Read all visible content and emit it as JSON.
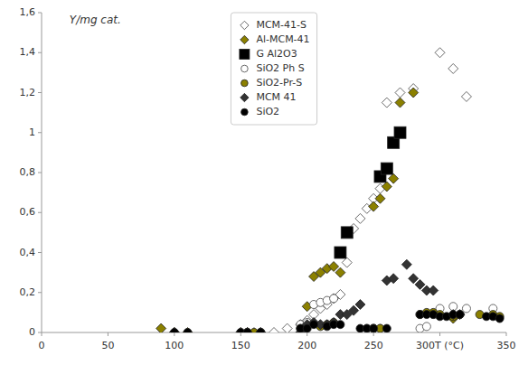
{
  "chart_data": {
    "type": "scatter",
    "y_label": "Y/mg cat.",
    "xlim": [
      0,
      350
    ],
    "ylim": [
      0,
      1.6
    ],
    "xticks": [
      0,
      50,
      100,
      150,
      200,
      250,
      {
        "value": 300,
        "label": "300T (°C)"
      },
      350
    ],
    "yticks": [
      0,
      {
        "value": 0.2,
        "label": "0,2"
      },
      {
        "value": 0.4,
        "label": "0,4"
      },
      {
        "value": 0.6,
        "label": "0,6"
      },
      {
        "value": 0.8,
        "label": "0,8"
      },
      1,
      {
        "value": 1.2,
        "label": "1,2"
      },
      {
        "value": 1.4,
        "label": "1,4"
      },
      {
        "value": 1.6,
        "label": "1,6"
      }
    ],
    "grid": false,
    "legend": "upper center",
    "series": [
      {
        "name": "MCM-41-S",
        "color": "white",
        "marker": "diamond",
        "x": [
          150,
          160,
          165,
          175,
          185,
          195,
          200,
          205,
          210,
          215,
          220,
          225,
          230,
          235,
          240,
          245,
          250,
          255,
          260,
          270,
          280,
          300,
          310,
          320
        ],
        "values": [
          0.0,
          0.0,
          0.0,
          0.0,
          0.02,
          0.04,
          0.06,
          0.09,
          0.12,
          0.14,
          0.17,
          0.19,
          0.35,
          0.52,
          0.57,
          0.62,
          0.67,
          0.72,
          1.15,
          1.2,
          1.22,
          1.4,
          1.32,
          1.18
        ]
      },
      {
        "name": "Al-MCM-41",
        "color": "#8B8000",
        "marker": "diamond",
        "x": [
          90,
          100,
          110,
          150,
          155,
          200,
          205,
          210,
          215,
          220,
          225,
          250,
          255,
          260,
          265,
          270,
          280,
          300,
          310
        ],
        "values": [
          0.02,
          0.0,
          0.0,
          0.0,
          0.0,
          0.13,
          0.28,
          0.3,
          0.32,
          0.33,
          0.3,
          0.63,
          0.67,
          0.73,
          0.77,
          1.15,
          1.2,
          0.09,
          0.07
        ]
      },
      {
        "name": "G Al2O3",
        "color": "black",
        "marker": "square",
        "x": [
          225,
          230,
          255,
          260,
          265,
          270
        ],
        "values": [
          0.4,
          0.5,
          0.78,
          0.82,
          0.95,
          1.0
        ]
      },
      {
        "name": "SiO2 Ph S",
        "color": "white",
        "marker": "circle",
        "x": [
          150,
          155,
          165,
          195,
          200,
          205,
          210,
          215,
          220,
          245,
          250,
          255,
          285,
          290,
          295,
          300,
          310,
          320,
          340
        ],
        "values": [
          0.0,
          0.0,
          0.0,
          0.04,
          0.05,
          0.14,
          0.15,
          0.16,
          0.17,
          0.02,
          0.02,
          0.02,
          0.02,
          0.03,
          0.09,
          0.12,
          0.13,
          0.12,
          0.12
        ]
      },
      {
        "name": "SiO2-Pr-S",
        "color": "#8B8000",
        "marker": "circle",
        "x": [
          155,
          160,
          165,
          195,
          200,
          210,
          215,
          220,
          250,
          255,
          285,
          290,
          295,
          300,
          310,
          315,
          330,
          340,
          345
        ],
        "values": [
          0.0,
          0.0,
          0.0,
          0.02,
          0.03,
          0.03,
          0.04,
          0.05,
          0.02,
          0.02,
          0.09,
          0.1,
          0.1,
          0.09,
          0.08,
          0.09,
          0.09,
          0.09,
          0.08
        ]
      },
      {
        "name": "MCM 41",
        "color": "#333333",
        "marker": "diamond",
        "x": [
          100,
          155,
          165,
          195,
          200,
          205,
          210,
          215,
          220,
          225,
          230,
          235,
          240,
          260,
          265,
          275,
          280,
          285,
          290,
          295,
          310,
          315
        ],
        "values": [
          0.0,
          0.0,
          0.0,
          0.0,
          0.04,
          0.05,
          0.04,
          0.04,
          0.05,
          0.09,
          0.09,
          0.11,
          0.14,
          0.26,
          0.27,
          0.34,
          0.27,
          0.24,
          0.21,
          0.21,
          0.09,
          0.09
        ]
      },
      {
        "name": "SiO2",
        "color": "black",
        "marker": "circle",
        "x": [
          100,
          110,
          150,
          155,
          165,
          195,
          200,
          205,
          215,
          220,
          225,
          240,
          245,
          250,
          260,
          285,
          290,
          295,
          300,
          305,
          310,
          315,
          335,
          340,
          345
        ],
        "values": [
          0.0,
          0.0,
          0.0,
          0.0,
          0.0,
          0.02,
          0.02,
          0.04,
          0.03,
          0.04,
          0.04,
          0.02,
          0.02,
          0.02,
          0.02,
          0.09,
          0.09,
          0.09,
          0.08,
          0.08,
          0.09,
          0.09,
          0.08,
          0.08,
          0.07
        ]
      }
    ]
  }
}
